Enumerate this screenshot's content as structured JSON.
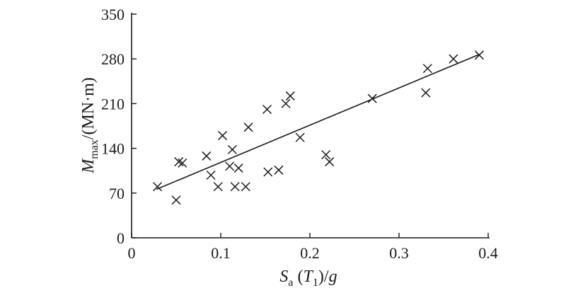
{
  "chart_data": {
    "type": "scatter",
    "title": "",
    "xlabel": {
      "symbol": "S",
      "subscript": "a",
      "open": " (",
      "arg_symbol": "T",
      "arg_subscript": "1",
      "close": ")/",
      "divisor": "g"
    },
    "ylabel": {
      "symbol": "M",
      "subscript": "max",
      "unit": "/(MN·m)"
    },
    "xlim": [
      0,
      0.4
    ],
    "ylim": [
      0,
      350
    ],
    "xticks": [
      0,
      0.1,
      0.2,
      0.3,
      0.4
    ],
    "xtick_labels": [
      "0",
      "0.1",
      "0.2",
      "0.3",
      "0.4"
    ],
    "yticks": [
      0,
      70,
      140,
      210,
      280,
      350
    ],
    "ytick_labels": [
      "0",
      "70",
      "140",
      "210",
      "280",
      "350"
    ],
    "grid": false,
    "marker": "x",
    "points": [
      {
        "x": 0.029,
        "y": 80
      },
      {
        "x": 0.05,
        "y": 59
      },
      {
        "x": 0.053,
        "y": 119
      },
      {
        "x": 0.057,
        "y": 117
      },
      {
        "x": 0.084,
        "y": 128
      },
      {
        "x": 0.089,
        "y": 98
      },
      {
        "x": 0.097,
        "y": 80
      },
      {
        "x": 0.102,
        "y": 160
      },
      {
        "x": 0.11,
        "y": 112
      },
      {
        "x": 0.113,
        "y": 138
      },
      {
        "x": 0.116,
        "y": 80
      },
      {
        "x": 0.12,
        "y": 109
      },
      {
        "x": 0.128,
        "y": 80
      },
      {
        "x": 0.131,
        "y": 173
      },
      {
        "x": 0.152,
        "y": 201
      },
      {
        "x": 0.153,
        "y": 103
      },
      {
        "x": 0.165,
        "y": 106
      },
      {
        "x": 0.173,
        "y": 210
      },
      {
        "x": 0.178,
        "y": 222
      },
      {
        "x": 0.189,
        "y": 157
      },
      {
        "x": 0.218,
        "y": 130
      },
      {
        "x": 0.222,
        "y": 119
      },
      {
        "x": 0.27,
        "y": 218
      },
      {
        "x": 0.33,
        "y": 227
      },
      {
        "x": 0.332,
        "y": 265
      },
      {
        "x": 0.361,
        "y": 280
      },
      {
        "x": 0.39,
        "y": 286
      }
    ],
    "fit_line": {
      "x": [
        0.028,
        0.39
      ],
      "y": [
        76,
        287
      ]
    },
    "colors": {
      "axis": "#1a1a1a",
      "marker": "#1a1a1a",
      "line": "#1a1a1a"
    }
  }
}
